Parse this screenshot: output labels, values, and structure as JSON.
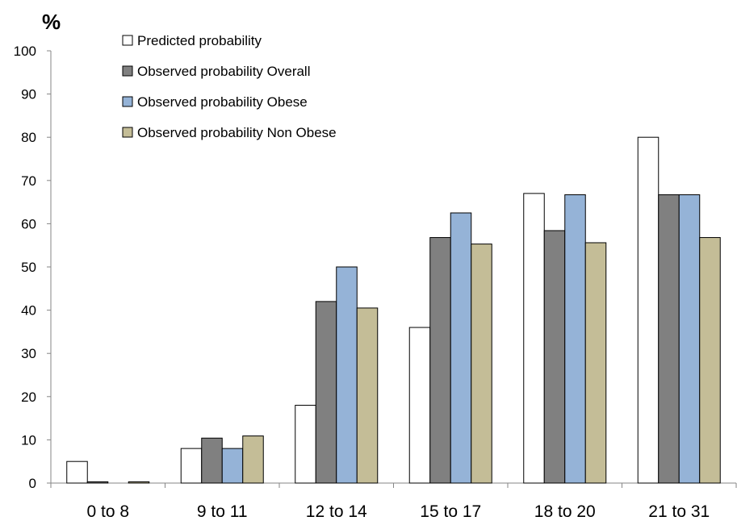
{
  "chart_data": {
    "type": "bar",
    "ylabel": "%",
    "ylim": [
      0,
      100
    ],
    "yticks": [
      0,
      10,
      20,
      30,
      40,
      50,
      60,
      70,
      80,
      90,
      100
    ],
    "categories": [
      "0 to 8",
      "9 to 11",
      "12 to 14",
      "15 to 17",
      "18 to 20",
      "21 to 31"
    ],
    "series": [
      {
        "name": "Predicted probability",
        "color": "#ffffff",
        "values": [
          5,
          8,
          18,
          36,
          67,
          80
        ]
      },
      {
        "name": "Observed probability Overall",
        "color": "#808080",
        "values": [
          0.3,
          10.4,
          42,
          56.8,
          58.4,
          66.7
        ]
      },
      {
        "name": "Observed probability Obese",
        "color": "#95b3d7",
        "values": [
          0,
          8,
          50,
          62.5,
          66.7,
          66.7
        ]
      },
      {
        "name": "Observed probability Non Obese",
        "color": "#c4bd97",
        "values": [
          0.3,
          10.9,
          40.5,
          55.3,
          55.6,
          56.8
        ]
      }
    ],
    "legend_position": "top",
    "grid": false
  }
}
